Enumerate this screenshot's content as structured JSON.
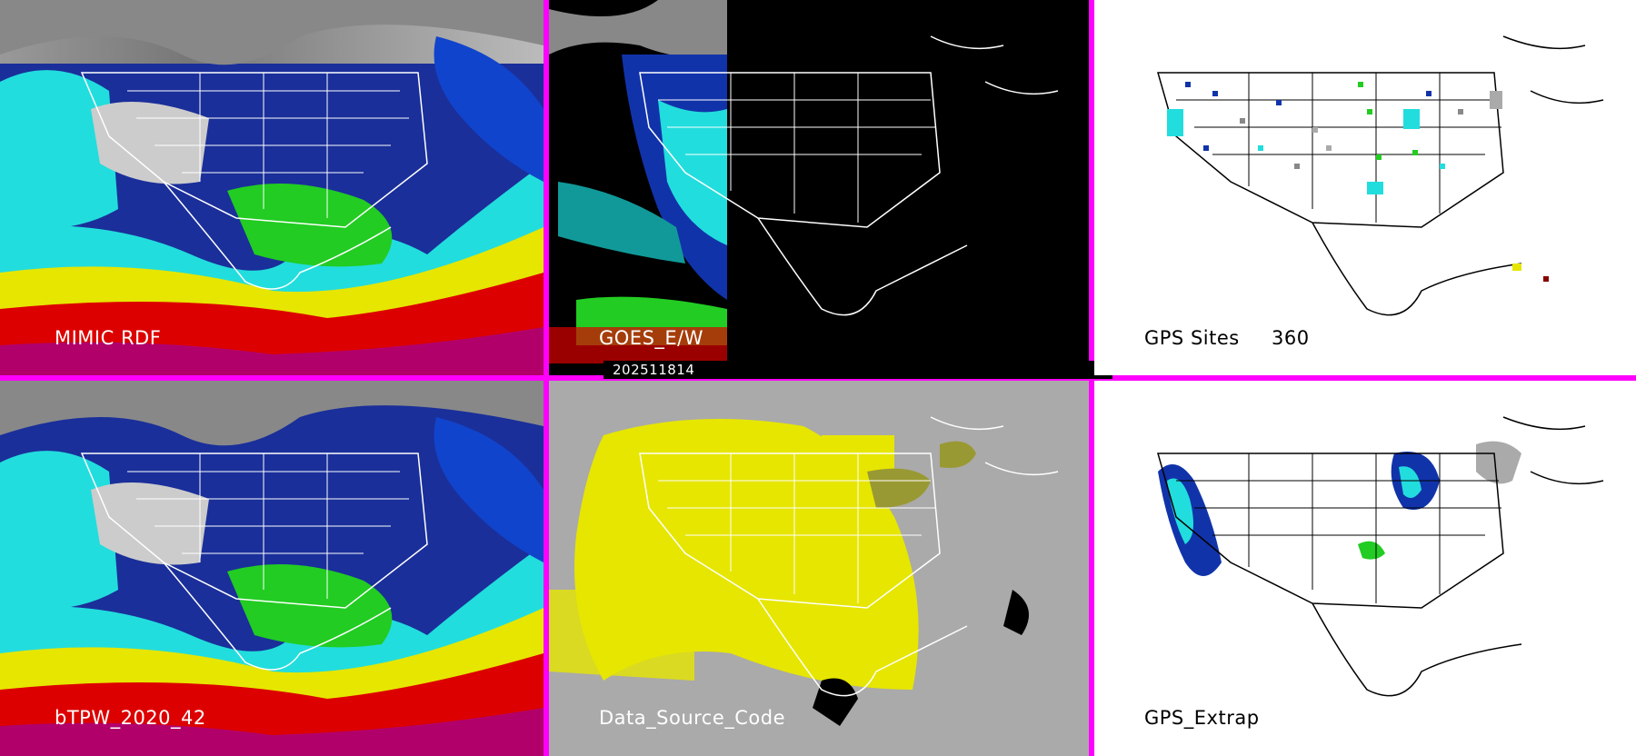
{
  "panels": {
    "mimic": {
      "label": "MIMIC RDF"
    },
    "goes": {
      "label": "GOES_E/W"
    },
    "gps_sites": {
      "label": "GPS Sites",
      "count": "360"
    },
    "btpw": {
      "label": "bTPW_2020_42"
    },
    "data_source": {
      "label": "Data_Source_Code"
    },
    "gps_extrap": {
      "label": "GPS_Extrap"
    }
  },
  "timestamp": "202511814",
  "colors": {
    "divider": "#ff00ff",
    "moist_red": "#dd0000",
    "yellow": "#e6e600",
    "green": "#22cc22",
    "cyan": "#22dddd",
    "blue": "#1133aa",
    "gray": "#aaaaaa"
  }
}
